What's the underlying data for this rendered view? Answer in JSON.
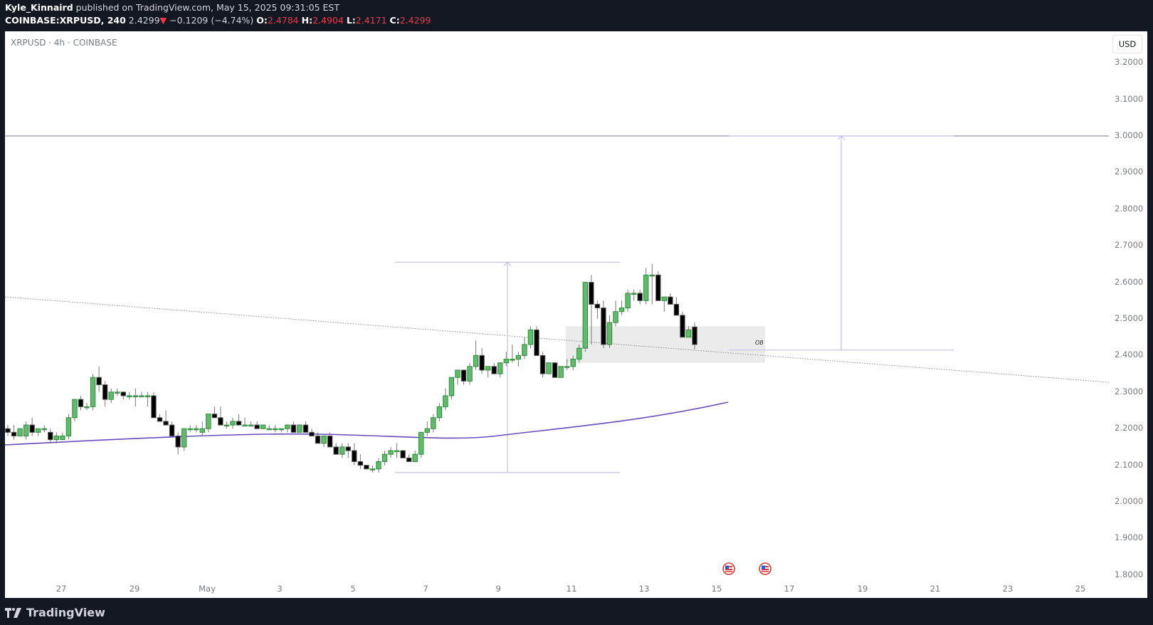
{
  "header": {
    "author": "Kyle_Kinnaird",
    "published": "published on TradingView.com, May 15, 2025 09:31:05 EST",
    "symbol_full": "COINBASE:XRPUSD, 240",
    "last": "2.4299",
    "change": "−0.1209 (−4.74%)",
    "o_label": "O:",
    "o": "2.4784",
    "h_label": "H:",
    "h": "2.4904",
    "l_label": "L:",
    "l": "2.4171",
    "c_label": "C:",
    "c": "2.4299"
  },
  "chart_title": "XRPUSD · 4h · COINBASE",
  "currency_button": "USD",
  "footer": {
    "brand": "TradingView"
  },
  "annotations": {
    "ob_label": "OB"
  },
  "colors": {
    "up": "#5fbc6a",
    "up_border": "#2e8b3a",
    "down": "#000000",
    "down_border": "#555555",
    "ma": "#6a4bbd",
    "projection": "#c8bde8",
    "ob_box": "#ebebeb"
  },
  "chart_data": {
    "type": "candlestick",
    "title": "XRPUSD · 4h · COINBASE",
    "xlabel": "",
    "ylabel": "USD",
    "ylim": [
      1.78,
      3.25
    ],
    "y_ticks": [
      "3.2000",
      "3.1000",
      "3.0000",
      "2.9000",
      "2.8000",
      "2.7000",
      "2.6000",
      "2.5000",
      "2.4000",
      "2.3000",
      "2.2000",
      "2.1000",
      "2.0000",
      "1.9000",
      "1.8000"
    ],
    "x_ticks": [
      "27",
      "29",
      "May",
      "3",
      "5",
      "7",
      "9",
      "11",
      "13",
      "15",
      "17",
      "19",
      "21",
      "23",
      "25"
    ],
    "horizontal_line": 3.0,
    "moving_average_end": 2.27,
    "order_block": {
      "label": "OB",
      "top": 2.48,
      "bottom": 2.38
    },
    "projections": [
      {
        "from": 2.08,
        "to": 2.655
      },
      {
        "from": 2.415,
        "to": 3.0
      }
    ],
    "trendline": {
      "start": 2.56,
      "end": 2.33
    },
    "ohlc": [
      [
        2.2,
        2.21,
        2.18,
        2.19
      ],
      [
        2.19,
        2.21,
        2.17,
        2.18
      ],
      [
        2.18,
        2.2,
        2.18,
        2.2
      ],
      [
        2.18,
        2.22,
        2.17,
        2.21
      ],
      [
        2.21,
        2.23,
        2.18,
        2.19
      ],
      [
        2.19,
        2.2,
        2.18,
        2.2
      ],
      [
        2.2,
        2.21,
        2.19,
        2.2
      ],
      [
        2.19,
        2.2,
        2.16,
        2.17
      ],
      [
        2.17,
        2.19,
        2.16,
        2.18
      ],
      [
        2.17,
        2.19,
        2.17,
        2.18
      ],
      [
        2.18,
        2.24,
        2.17,
        2.23
      ],
      [
        2.23,
        2.28,
        2.22,
        2.28
      ],
      [
        2.28,
        2.29,
        2.25,
        2.26
      ],
      [
        2.26,
        2.27,
        2.25,
        2.26
      ],
      [
        2.26,
        2.35,
        2.25,
        2.34
      ],
      [
        2.34,
        2.37,
        2.3,
        2.32
      ],
      [
        2.32,
        2.33,
        2.26,
        2.28
      ],
      [
        2.28,
        2.31,
        2.27,
        2.3
      ],
      [
        2.3,
        2.31,
        2.29,
        2.3
      ],
      [
        2.3,
        2.3,
        2.28,
        2.29
      ],
      [
        2.29,
        2.3,
        2.28,
        2.29
      ],
      [
        2.29,
        2.31,
        2.26,
        2.29
      ],
      [
        2.29,
        2.3,
        2.29,
        2.29
      ],
      [
        2.29,
        2.3,
        2.26,
        2.29
      ],
      [
        2.29,
        2.3,
        2.23,
        2.23
      ],
      [
        2.23,
        2.24,
        2.22,
        2.22
      ],
      [
        2.22,
        2.25,
        2.21,
        2.21
      ],
      [
        2.21,
        2.22,
        2.18,
        2.18
      ],
      [
        2.18,
        2.19,
        2.13,
        2.15
      ],
      [
        2.15,
        2.2,
        2.14,
        2.2
      ],
      [
        2.2,
        2.21,
        2.19,
        2.2
      ],
      [
        2.2,
        2.21,
        2.19,
        2.2
      ],
      [
        2.19,
        2.22,
        2.18,
        2.2
      ],
      [
        2.2,
        2.23,
        2.19,
        2.24
      ],
      [
        2.24,
        2.26,
        2.23,
        2.23
      ],
      [
        2.23,
        2.26,
        2.22,
        2.21
      ],
      [
        2.21,
        2.22,
        2.2,
        2.21
      ],
      [
        2.21,
        2.23,
        2.2,
        2.22
      ],
      [
        2.22,
        2.24,
        2.21,
        2.21
      ],
      [
        2.21,
        2.23,
        2.21,
        2.21
      ],
      [
        2.21,
        2.22,
        2.21,
        2.21
      ],
      [
        2.21,
        2.22,
        2.2,
        2.2
      ],
      [
        2.2,
        2.21,
        2.2,
        2.21
      ],
      [
        2.2,
        2.21,
        2.2,
        2.2
      ],
      [
        2.2,
        2.21,
        2.19,
        2.2
      ],
      [
        2.2,
        2.2,
        2.19,
        2.2
      ],
      [
        2.2,
        2.21,
        2.19,
        2.21
      ],
      [
        2.21,
        2.22,
        2.19,
        2.19
      ],
      [
        2.19,
        2.21,
        2.19,
        2.21
      ],
      [
        2.21,
        2.22,
        2.19,
        2.19
      ],
      [
        2.19,
        2.2,
        2.18,
        2.18
      ],
      [
        2.18,
        2.19,
        2.16,
        2.16
      ],
      [
        2.16,
        2.18,
        2.15,
        2.18
      ],
      [
        2.18,
        2.19,
        2.16,
        2.15
      ],
      [
        2.15,
        2.16,
        2.13,
        2.13
      ],
      [
        2.13,
        2.16,
        2.12,
        2.15
      ],
      [
        2.15,
        2.16,
        2.12,
        2.14
      ],
      [
        2.14,
        2.16,
        2.1,
        2.11
      ],
      [
        2.11,
        2.13,
        2.09,
        2.1
      ],
      [
        2.1,
        2.1,
        2.09,
        2.09
      ],
      [
        2.09,
        2.1,
        2.08,
        2.09
      ],
      [
        2.09,
        2.12,
        2.08,
        2.11
      ],
      [
        2.11,
        2.14,
        2.1,
        2.13
      ],
      [
        2.13,
        2.15,
        2.12,
        2.14
      ],
      [
        2.14,
        2.16,
        2.12,
        2.14
      ],
      [
        2.14,
        2.14,
        2.12,
        2.12
      ],
      [
        2.12,
        2.13,
        2.11,
        2.11
      ],
      [
        2.11,
        2.14,
        2.11,
        2.13
      ],
      [
        2.13,
        2.19,
        2.12,
        2.19
      ],
      [
        2.19,
        2.22,
        2.18,
        2.2
      ],
      [
        2.2,
        2.24,
        2.19,
        2.23
      ],
      [
        2.23,
        2.27,
        2.22,
        2.26
      ],
      [
        2.26,
        2.31,
        2.25,
        2.29
      ],
      [
        2.29,
        2.34,
        2.28,
        2.34
      ],
      [
        2.34,
        2.36,
        2.32,
        2.36
      ],
      [
        2.36,
        2.36,
        2.32,
        2.33
      ],
      [
        2.33,
        2.38,
        2.32,
        2.37
      ],
      [
        2.37,
        2.44,
        2.36,
        2.4
      ],
      [
        2.4,
        2.42,
        2.35,
        2.36
      ],
      [
        2.36,
        2.37,
        2.34,
        2.37
      ],
      [
        2.37,
        2.38,
        2.35,
        2.35
      ],
      [
        2.35,
        2.38,
        2.34,
        2.38
      ],
      [
        2.38,
        2.41,
        2.37,
        2.39
      ],
      [
        2.39,
        2.43,
        2.38,
        2.39
      ],
      [
        2.39,
        2.41,
        2.37,
        2.4
      ],
      [
        2.4,
        2.45,
        2.39,
        2.43
      ],
      [
        2.43,
        2.48,
        2.42,
        2.47
      ],
      [
        2.47,
        2.48,
        2.41,
        2.4
      ],
      [
        2.4,
        2.41,
        2.34,
        2.35
      ],
      [
        2.35,
        2.37,
        2.35,
        2.38
      ],
      [
        2.38,
        2.38,
        2.34,
        2.34
      ],
      [
        2.34,
        2.37,
        2.34,
        2.37
      ],
      [
        2.37,
        2.39,
        2.36,
        2.37
      ],
      [
        2.37,
        2.4,
        2.36,
        2.39
      ],
      [
        2.39,
        2.43,
        2.38,
        2.42
      ],
      [
        2.42,
        2.49,
        2.41,
        2.6
      ],
      [
        2.6,
        2.62,
        2.43,
        2.54
      ],
      [
        2.54,
        2.55,
        2.5,
        2.53
      ],
      [
        2.53,
        2.55,
        2.42,
        2.43
      ],
      [
        2.43,
        2.51,
        2.42,
        2.49
      ],
      [
        2.49,
        2.55,
        2.48,
        2.52
      ],
      [
        2.52,
        2.55,
        2.51,
        2.53
      ],
      [
        2.53,
        2.58,
        2.52,
        2.57
      ],
      [
        2.57,
        2.58,
        2.55,
        2.57
      ],
      [
        2.57,
        2.58,
        2.54,
        2.55
      ],
      [
        2.55,
        2.64,
        2.54,
        2.62
      ],
      [
        2.62,
        2.65,
        2.54,
        2.62
      ],
      [
        2.62,
        2.63,
        2.55,
        2.55
      ],
      [
        2.55,
        2.56,
        2.52,
        2.56
      ],
      [
        2.56,
        2.57,
        2.55,
        2.54
      ],
      [
        2.54,
        2.56,
        2.51,
        2.51
      ],
      [
        2.51,
        2.52,
        2.45,
        2.45
      ],
      [
        2.45,
        2.48,
        2.45,
        2.47
      ],
      [
        2.478,
        2.49,
        2.417,
        2.43
      ]
    ]
  }
}
